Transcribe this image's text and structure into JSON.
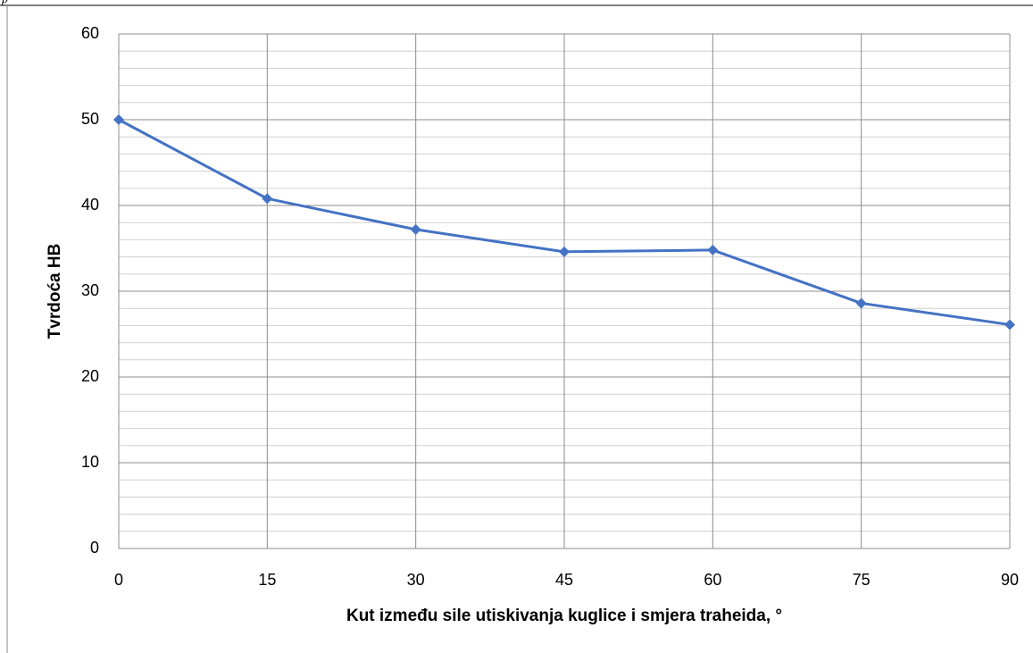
{
  "page_fragment": "p",
  "chart_data": {
    "type": "line",
    "x_label": "Kut između sile utiskivanja kuglice i smjera traheida, °",
    "y_label": "Tvrdoća HB",
    "x": [
      0,
      15,
      30,
      45,
      60,
      75,
      90
    ],
    "series": [
      {
        "name": "Tvrdoća HB",
        "color": "#4472c4",
        "values": [
          50,
          40.8,
          37.2,
          34.6,
          34.8,
          28.6,
          26.1
        ]
      }
    ],
    "xlim": [
      0,
      90
    ],
    "xticks": [
      0,
      15,
      30,
      45,
      60,
      75,
      90
    ],
    "ylim": [
      0,
      60
    ],
    "yticks": [
      0,
      10,
      20,
      30,
      40,
      50,
      60
    ],
    "yminorticks": [
      2,
      4,
      6,
      8,
      12,
      14,
      16,
      18,
      22,
      24,
      26,
      28,
      32,
      34,
      36,
      38,
      42,
      44,
      46,
      48,
      52,
      54,
      56,
      58
    ],
    "grid": true,
    "legend": false
  }
}
